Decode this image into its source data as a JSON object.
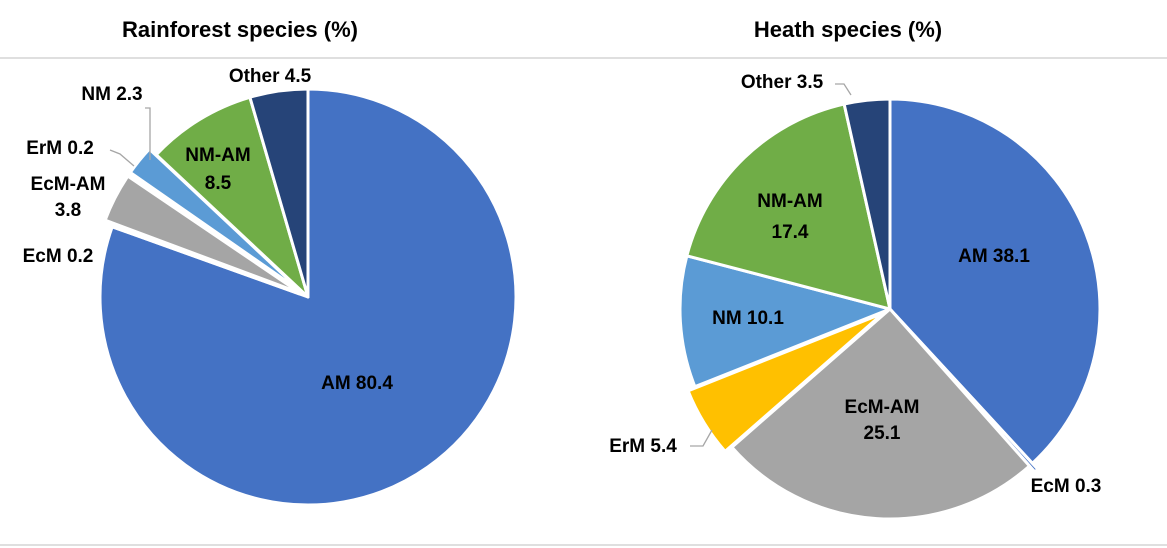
{
  "chart_data": [
    {
      "type": "pie",
      "title": "Rainforest species (%)",
      "slices": [
        {
          "label": "AM",
          "value": 80.4,
          "color": "#4472c4",
          "text": [
            "AM 80.4"
          ]
        },
        {
          "label": "EcM",
          "value": 0.2,
          "color": "#ffc000",
          "text": [
            "EcM 0.2"
          ]
        },
        {
          "label": "EcM-AM",
          "value": 3.8,
          "color": "#a5a5a5",
          "text": [
            "EcM-AM",
            "3.8"
          ]
        },
        {
          "label": "ErM",
          "value": 0.2,
          "color": "#ffc000",
          "text": [
            "ErM 0.2"
          ]
        },
        {
          "label": "NM",
          "value": 2.3,
          "color": "#5b9bd5",
          "text": [
            "NM 2.3"
          ]
        },
        {
          "label": "NM-AM",
          "value": 8.5,
          "color": "#70ad47",
          "text": [
            "NM-AM",
            "8.5"
          ]
        },
        {
          "label": "Other",
          "value": 4.5,
          "color": "#264478",
          "text": [
            "Other 4.5"
          ]
        }
      ]
    },
    {
      "type": "pie",
      "title": "Heath species (%)",
      "slices": [
        {
          "label": "AM",
          "value": 38.1,
          "color": "#4472c4",
          "text": [
            "AM 38.1"
          ]
        },
        {
          "label": "EcM",
          "value": 0.3,
          "color": "#4472c4",
          "text": [
            "EcM 0.3"
          ]
        },
        {
          "label": "EcM-AM",
          "value": 25.1,
          "color": "#a5a5a5",
          "text": [
            "EcM-AM",
            "25.1"
          ]
        },
        {
          "label": "ErM",
          "value": 5.4,
          "color": "#ffc000",
          "text": [
            "ErM 5.4"
          ]
        },
        {
          "label": "NM",
          "value": 10.1,
          "color": "#5b9bd5",
          "text": [
            "NM 10.1"
          ]
        },
        {
          "label": "NM-AM",
          "value": 17.4,
          "color": "#70ad47",
          "text": [
            "NM-AM",
            "17.4"
          ]
        },
        {
          "label": "Other",
          "value": 3.5,
          "color": "#264478",
          "text": [
            "Other 3.5"
          ]
        }
      ]
    }
  ]
}
